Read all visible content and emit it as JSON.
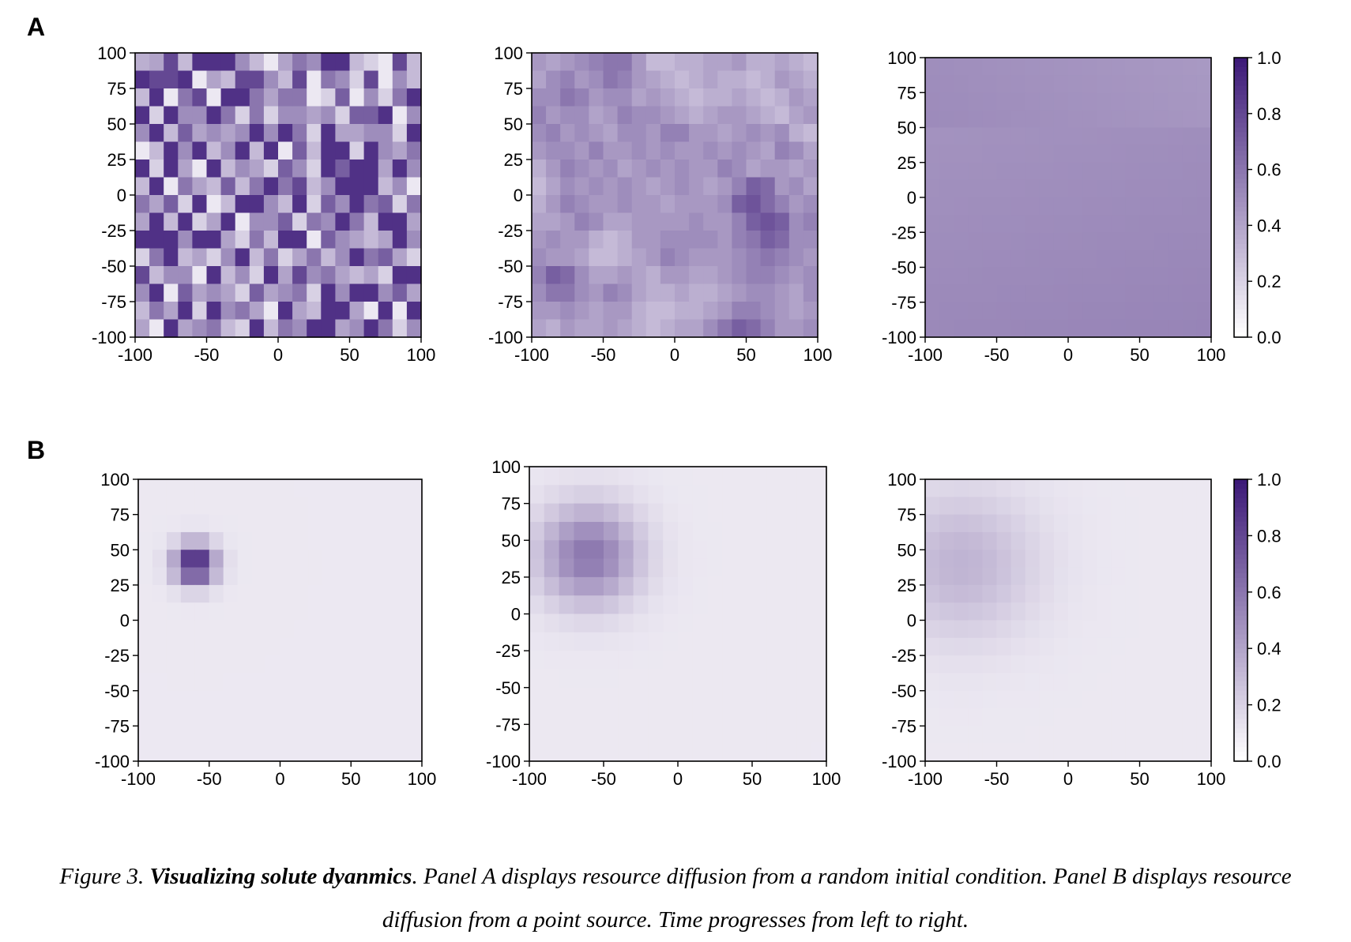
{
  "figure": {
    "panel_labels": [
      "A",
      "B"
    ]
  },
  "caption": {
    "prefix": "Figure 3. ",
    "bold": "Visualizing solute dyanmics",
    "text": ". Panel A displays resource diffusion from a random initial condition. Panel B displays resource diffusion from a point source. Time progresses from left to right."
  },
  "colors": {
    "low": "#ffffff",
    "high": "#3d1a78"
  },
  "chart_data": [
    {
      "type": "heatmap",
      "panel": "A",
      "snapshot": 1,
      "xlim": [
        -100,
        100
      ],
      "ylim": [
        -100,
        100
      ],
      "xticks": [
        "-100",
        "-50",
        "0",
        "50",
        "100"
      ],
      "yticks": [
        "100",
        "75",
        "50",
        "25",
        "0",
        "-25",
        "-50",
        "-75",
        "-100"
      ],
      "grid": [
        [
          0.35,
          0.4,
          0.8,
          0.3,
          0.9,
          0.9,
          0.9,
          0.5,
          0.3,
          0.1,
          0.4,
          0.6,
          0.5,
          0.9,
          0.9,
          0.3,
          0.2,
          0.1,
          0.8,
          0.3
        ],
        [
          0.9,
          0.8,
          0.8,
          0.9,
          0.1,
          0.4,
          0.3,
          0.8,
          0.8,
          0.5,
          0.3,
          0.8,
          0.1,
          0.6,
          0.5,
          0.2,
          0.8,
          0.1,
          0.5,
          0.3
        ],
        [
          0.3,
          0.9,
          0.1,
          0.6,
          0.8,
          0.1,
          0.9,
          0.9,
          0.6,
          0.4,
          0.6,
          0.6,
          0.1,
          0.2,
          0.7,
          0.1,
          0.5,
          0.2,
          0.6,
          0.9
        ],
        [
          0.9,
          0.2,
          0.9,
          0.5,
          0.5,
          0.9,
          0.6,
          0.2,
          0.6,
          0.2,
          0.5,
          0.5,
          0.4,
          0.5,
          0.2,
          0.7,
          0.7,
          0.9,
          0.1,
          0.5
        ],
        [
          0.5,
          0.9,
          0.3,
          0.7,
          0.4,
          0.5,
          0.4,
          0.5,
          0.9,
          0.5,
          0.9,
          0.6,
          0.2,
          0.9,
          0.4,
          0.4,
          0.5,
          0.5,
          0.2,
          0.9
        ],
        [
          0.1,
          0.3,
          0.9,
          0.5,
          0.9,
          0.3,
          0.5,
          0.9,
          0.3,
          0.9,
          0.1,
          0.7,
          0.3,
          0.9,
          0.9,
          0.2,
          0.9,
          0.5,
          0.4,
          0.6
        ],
        [
          0.9,
          0.2,
          0.9,
          0.4,
          0.1,
          0.9,
          0.3,
          0.5,
          0.4,
          0.2,
          0.7,
          0.5,
          0.2,
          0.9,
          0.7,
          0.9,
          0.9,
          0.4,
          0.9,
          0.5
        ],
        [
          0.3,
          0.9,
          0.1,
          0.6,
          0.4,
          0.3,
          0.7,
          0.3,
          0.6,
          0.9,
          0.6,
          0.8,
          0.3,
          0.5,
          0.9,
          0.9,
          0.9,
          0.3,
          0.5,
          0.1
        ],
        [
          0.6,
          0.4,
          0.7,
          0.2,
          0.9,
          0.1,
          0.3,
          0.9,
          0.9,
          0.5,
          0.3,
          0.9,
          0.2,
          0.7,
          0.5,
          0.9,
          0.6,
          0.7,
          0.2,
          0.6
        ],
        [
          0.4,
          0.9,
          0.3,
          0.9,
          0.2,
          0.4,
          0.9,
          0.1,
          0.5,
          0.5,
          0.7,
          0.2,
          0.6,
          0.5,
          0.9,
          0.6,
          0.3,
          0.9,
          0.9,
          0.4
        ],
        [
          0.9,
          0.9,
          0.9,
          0.5,
          0.9,
          0.9,
          0.4,
          0.2,
          0.6,
          0.3,
          0.9,
          0.9,
          0.1,
          0.7,
          0.5,
          0.4,
          0.3,
          0.4,
          0.9,
          0.5
        ],
        [
          0.2,
          0.6,
          0.9,
          0.3,
          0.4,
          0.2,
          0.5,
          0.9,
          0.3,
          0.6,
          0.2,
          0.4,
          0.6,
          0.3,
          0.5,
          0.9,
          0.6,
          0.7,
          0.4,
          0.2
        ],
        [
          0.8,
          0.3,
          0.5,
          0.5,
          0.1,
          0.9,
          0.3,
          0.5,
          0.2,
          0.9,
          0.4,
          0.8,
          0.5,
          0.6,
          0.4,
          0.3,
          0.4,
          0.2,
          0.9,
          0.9
        ],
        [
          0.5,
          0.9,
          0.1,
          0.7,
          0.4,
          0.5,
          0.4,
          0.2,
          0.7,
          0.4,
          0.5,
          0.6,
          0.2,
          0.9,
          0.5,
          0.9,
          0.9,
          0.5,
          0.7,
          0.4
        ],
        [
          0.3,
          0.6,
          0.4,
          0.9,
          0.2,
          0.9,
          0.5,
          0.6,
          0.4,
          0.1,
          0.9,
          0.4,
          0.3,
          0.9,
          0.9,
          0.4,
          0.1,
          0.9,
          0.1,
          0.9
        ],
        [
          0.4,
          0.1,
          0.9,
          0.4,
          0.5,
          0.6,
          0.3,
          0.2,
          0.9,
          0.3,
          0.6,
          0.5,
          0.9,
          0.9,
          0.4,
          0.5,
          0.9,
          0.6,
          0.2,
          0.5
        ]
      ]
    },
    {
      "type": "heatmap",
      "panel": "A",
      "snapshot": 2,
      "xlim": [
        -100,
        100
      ],
      "ylim": [
        -100,
        100
      ],
      "xticks": [
        "-100",
        "-50",
        "0",
        "50",
        "100"
      ],
      "yticks": [
        "100",
        "75",
        "50",
        "25",
        "0",
        "-25",
        "-50",
        "-75",
        "-100"
      ],
      "grid": [
        [
          0.45,
          0.4,
          0.45,
          0.5,
          0.55,
          0.6,
          0.6,
          0.45,
          0.3,
          0.3,
          0.35,
          0.35,
          0.4,
          0.4,
          0.45,
          0.35,
          0.35,
          0.4,
          0.35,
          0.3
        ],
        [
          0.4,
          0.5,
          0.55,
          0.45,
          0.5,
          0.6,
          0.55,
          0.45,
          0.4,
          0.35,
          0.3,
          0.35,
          0.4,
          0.35,
          0.35,
          0.3,
          0.35,
          0.45,
          0.4,
          0.35
        ],
        [
          0.5,
          0.5,
          0.6,
          0.55,
          0.45,
          0.5,
          0.5,
          0.4,
          0.45,
          0.4,
          0.35,
          0.3,
          0.35,
          0.35,
          0.4,
          0.35,
          0.3,
          0.35,
          0.45,
          0.4
        ],
        [
          0.55,
          0.45,
          0.5,
          0.5,
          0.4,
          0.45,
          0.55,
          0.5,
          0.5,
          0.45,
          0.4,
          0.35,
          0.4,
          0.45,
          0.45,
          0.4,
          0.35,
          0.3,
          0.4,
          0.45
        ],
        [
          0.5,
          0.55,
          0.45,
          0.5,
          0.45,
          0.4,
          0.5,
          0.5,
          0.45,
          0.55,
          0.55,
          0.45,
          0.45,
          0.4,
          0.45,
          0.5,
          0.45,
          0.5,
          0.35,
          0.3
        ],
        [
          0.45,
          0.5,
          0.5,
          0.45,
          0.55,
          0.45,
          0.45,
          0.5,
          0.45,
          0.5,
          0.45,
          0.45,
          0.5,
          0.45,
          0.5,
          0.45,
          0.4,
          0.55,
          0.5,
          0.4
        ],
        [
          0.35,
          0.45,
          0.55,
          0.5,
          0.45,
          0.5,
          0.4,
          0.45,
          0.5,
          0.45,
          0.5,
          0.45,
          0.45,
          0.55,
          0.5,
          0.4,
          0.45,
          0.45,
          0.4,
          0.45
        ],
        [
          0.3,
          0.4,
          0.5,
          0.45,
          0.5,
          0.45,
          0.5,
          0.45,
          0.4,
          0.45,
          0.5,
          0.45,
          0.4,
          0.45,
          0.55,
          0.7,
          0.65,
          0.45,
          0.5,
          0.4
        ],
        [
          0.35,
          0.45,
          0.55,
          0.5,
          0.45,
          0.45,
          0.5,
          0.45,
          0.45,
          0.4,
          0.45,
          0.45,
          0.45,
          0.5,
          0.7,
          0.75,
          0.65,
          0.55,
          0.45,
          0.5
        ],
        [
          0.4,
          0.4,
          0.45,
          0.55,
          0.5,
          0.4,
          0.4,
          0.45,
          0.45,
          0.45,
          0.45,
          0.5,
          0.45,
          0.45,
          0.55,
          0.7,
          0.75,
          0.7,
          0.5,
          0.55
        ],
        [
          0.45,
          0.5,
          0.45,
          0.45,
          0.35,
          0.3,
          0.35,
          0.45,
          0.45,
          0.5,
          0.5,
          0.5,
          0.5,
          0.45,
          0.55,
          0.6,
          0.7,
          0.65,
          0.5,
          0.5
        ],
        [
          0.5,
          0.45,
          0.45,
          0.4,
          0.3,
          0.3,
          0.35,
          0.4,
          0.45,
          0.55,
          0.5,
          0.45,
          0.45,
          0.45,
          0.5,
          0.55,
          0.6,
          0.55,
          0.5,
          0.45
        ],
        [
          0.55,
          0.7,
          0.65,
          0.5,
          0.4,
          0.4,
          0.45,
          0.4,
          0.35,
          0.45,
          0.45,
          0.4,
          0.4,
          0.45,
          0.5,
          0.55,
          0.55,
          0.5,
          0.45,
          0.5
        ],
        [
          0.5,
          0.6,
          0.6,
          0.5,
          0.45,
          0.55,
          0.5,
          0.4,
          0.35,
          0.35,
          0.4,
          0.35,
          0.35,
          0.4,
          0.45,
          0.5,
          0.5,
          0.45,
          0.4,
          0.5
        ],
        [
          0.45,
          0.45,
          0.5,
          0.45,
          0.4,
          0.45,
          0.45,
          0.35,
          0.3,
          0.3,
          0.35,
          0.35,
          0.4,
          0.45,
          0.55,
          0.55,
          0.5,
          0.45,
          0.4,
          0.45
        ],
        [
          0.4,
          0.35,
          0.45,
          0.4,
          0.4,
          0.45,
          0.4,
          0.35,
          0.3,
          0.35,
          0.4,
          0.4,
          0.5,
          0.6,
          0.7,
          0.65,
          0.55,
          0.45,
          0.45,
          0.5
        ]
      ]
    },
    {
      "type": "heatmap",
      "panel": "A",
      "snapshot": 3,
      "xlim": [
        -100,
        100
      ],
      "ylim": [
        -100,
        100
      ],
      "xticks": [
        "-100",
        "-50",
        "0",
        "50",
        "100"
      ],
      "yticks": [
        "100",
        "75",
        "50",
        "25",
        "0",
        "-25",
        "-50",
        "-75",
        "-100"
      ],
      "approx_uniform_value": 0.5
    },
    {
      "type": "heatmap",
      "panel": "B",
      "snapshot": 1,
      "xlim": [
        -100,
        100
      ],
      "ylim": [
        -100,
        100
      ],
      "xticks": [
        "-100",
        "-50",
        "0",
        "50",
        "100"
      ],
      "yticks": [
        "100",
        "75",
        "50",
        "25",
        "0",
        "-25",
        "-50",
        "-75",
        "-100"
      ],
      "source": {
        "x": -60,
        "y": 40,
        "peak": 1.0,
        "spread": 0.6,
        "background": 0.1
      }
    },
    {
      "type": "heatmap",
      "panel": "B",
      "snapshot": 2,
      "xlim": [
        -100,
        100
      ],
      "ylim": [
        -100,
        100
      ],
      "xticks": [
        "-100",
        "-50",
        "0",
        "50",
        "100"
      ],
      "yticks": [
        "100",
        "75",
        "50",
        "25",
        "0",
        "-25",
        "-50",
        "-75",
        "-100"
      ],
      "source": {
        "x": -60,
        "y": 40,
        "peak": 0.6,
        "spread": 1.4,
        "background": 0.1
      }
    },
    {
      "type": "heatmap",
      "panel": "B",
      "snapshot": 3,
      "xlim": [
        -100,
        100
      ],
      "ylim": [
        -100,
        100
      ],
      "xticks": [
        "-100",
        "-50",
        "0",
        "50",
        "100"
      ],
      "yticks": [
        "100",
        "75",
        "50",
        "25",
        "0",
        "-25",
        "-50",
        "-75",
        "-100"
      ],
      "source": {
        "x": -75,
        "y": 40,
        "peak": 0.33,
        "spread": 2.2,
        "background": 0.1
      }
    },
    {
      "type": "colorbar",
      "panel": "A",
      "range": [
        0.0,
        1.0
      ],
      "ticks": [
        "1.0",
        "0.8",
        "0.6",
        "0.4",
        "0.2",
        "0.0"
      ]
    },
    {
      "type": "colorbar",
      "panel": "B",
      "range": [
        0.0,
        1.0
      ],
      "ticks": [
        "1.0",
        "0.8",
        "0.6",
        "0.4",
        "0.2",
        "0.0"
      ]
    }
  ]
}
